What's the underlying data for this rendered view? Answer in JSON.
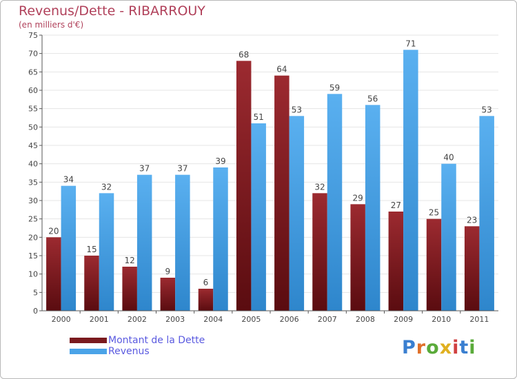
{
  "chart_data": {
    "type": "bar",
    "title": "Revenus/Dette - RIBARROUY",
    "subtitle": "(en milliers d'€)",
    "categories": [
      "2000",
      "2001",
      "2002",
      "2003",
      "2004",
      "2005",
      "2006",
      "2007",
      "2008",
      "2009",
      "2010",
      "2011"
    ],
    "series": [
      {
        "name": "Montant de la Dette",
        "color": "#7a1a1e",
        "values": [
          20,
          15,
          12,
          9,
          6,
          68,
          64,
          32,
          29,
          27,
          25,
          23
        ]
      },
      {
        "name": "Revenus",
        "color": "#4aa3e8",
        "values": [
          34,
          32,
          37,
          37,
          39,
          51,
          53,
          59,
          56,
          71,
          40,
          53
        ]
      }
    ],
    "ylim": [
      0,
      75
    ],
    "yticks": [
      0,
      5,
      10,
      15,
      20,
      25,
      30,
      35,
      40,
      45,
      50,
      55,
      60,
      65,
      70,
      75
    ],
    "grid": true,
    "legend_position": "bottom-left",
    "data_labels": true
  },
  "branding": {
    "logo_text": "Proxiti",
    "logo_colors": [
      "#3a7fd0",
      "#e0702a",
      "#5aaa3a",
      "#e0b020",
      "#d04040",
      "#3a7fd0",
      "#5aaa3a"
    ]
  }
}
